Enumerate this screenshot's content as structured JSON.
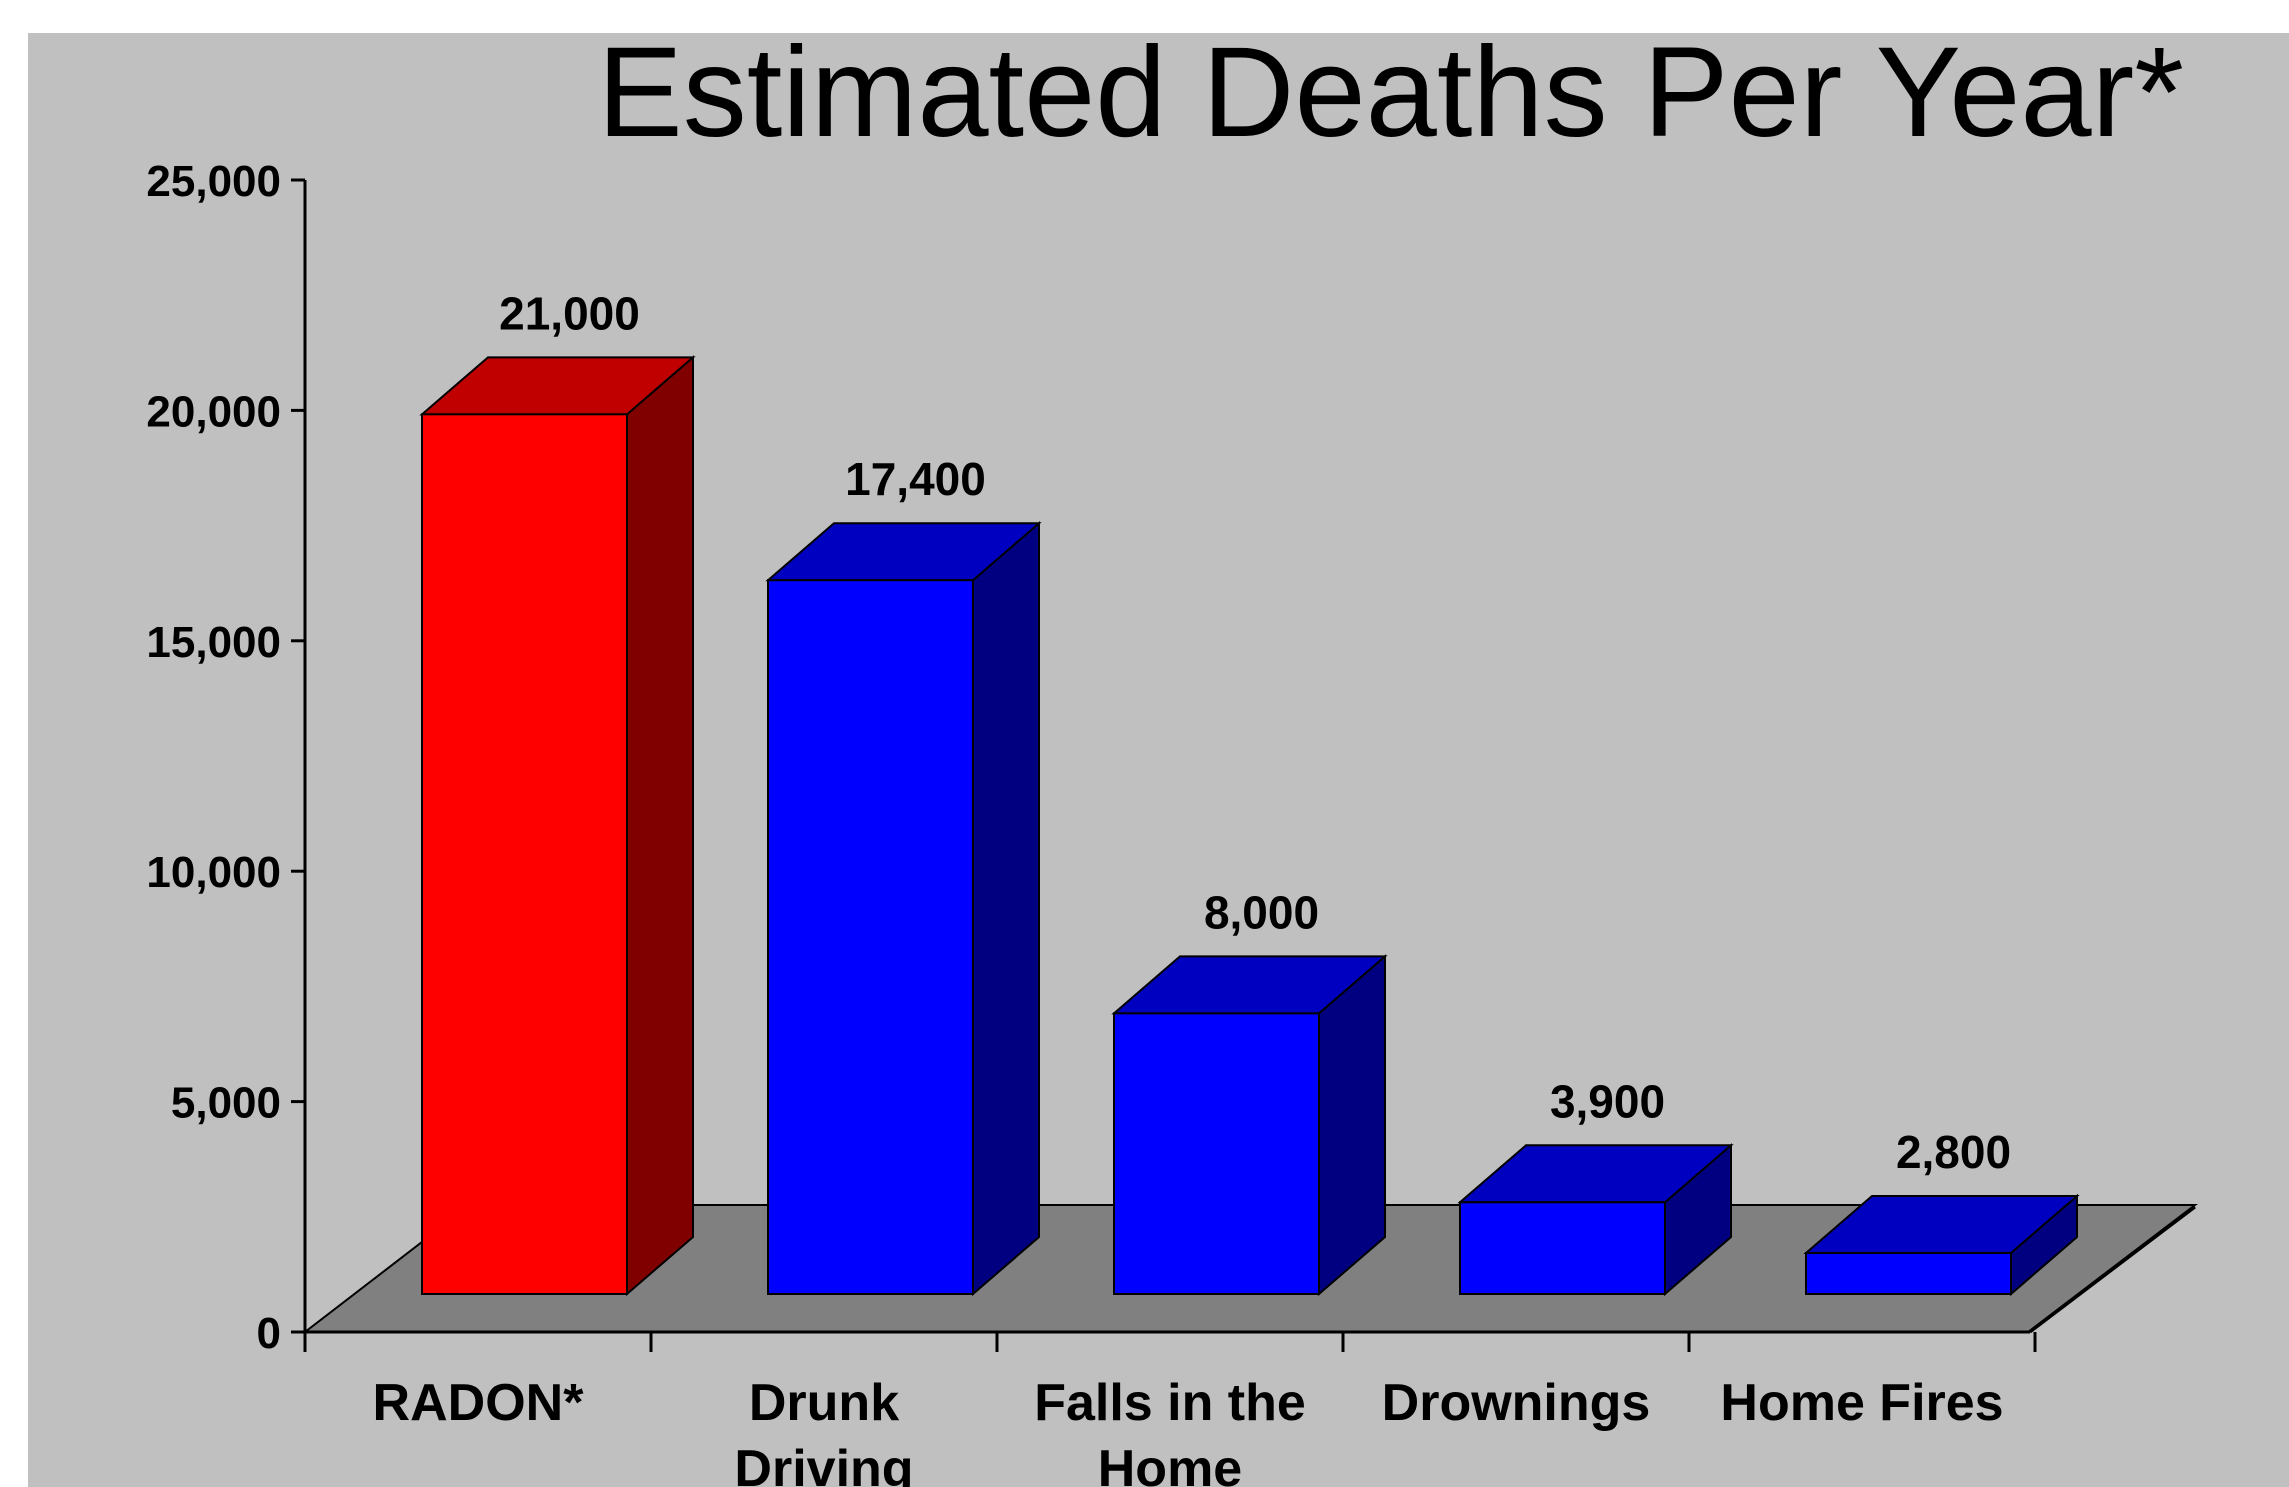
{
  "chart_data": {
    "type": "bar",
    "title": "Estimated Deaths Per Year*",
    "categories": [
      "RADON*",
      "Drunk Driving",
      "Falls in the Home",
      "Drownings",
      "Home Fires"
    ],
    "category_lines": [
      [
        "RADON*"
      ],
      [
        "Drunk",
        "Driving"
      ],
      [
        "Falls in the",
        "Home"
      ],
      [
        "Drownings"
      ],
      [
        "Home Fires"
      ]
    ],
    "values": [
      21000,
      17400,
      8000,
      3900,
      2800
    ],
    "value_labels": [
      "21,000",
      "17,400",
      "8,000",
      "3,900",
      "2,800"
    ],
    "yticks": [
      0,
      5000,
      10000,
      15000,
      20000,
      25000
    ],
    "ytick_labels": [
      "0",
      "5,000",
      "10,000",
      "15,000",
      "20,000",
      "25,000"
    ],
    "ylim": [
      0,
      25000
    ],
    "xlabel": "",
    "ylabel": "",
    "grid": false,
    "style": "3d",
    "colors": {
      "background": "#c0c0c0",
      "floor": "#808080",
      "highlight_front": "#ff0000",
      "highlight_side": "#800000",
      "highlight_top": "#c00000",
      "bar_front": "#0000ff",
      "bar_side": "#000080",
      "bar_top": "#0000c0"
    },
    "highlight_index": 0
  }
}
